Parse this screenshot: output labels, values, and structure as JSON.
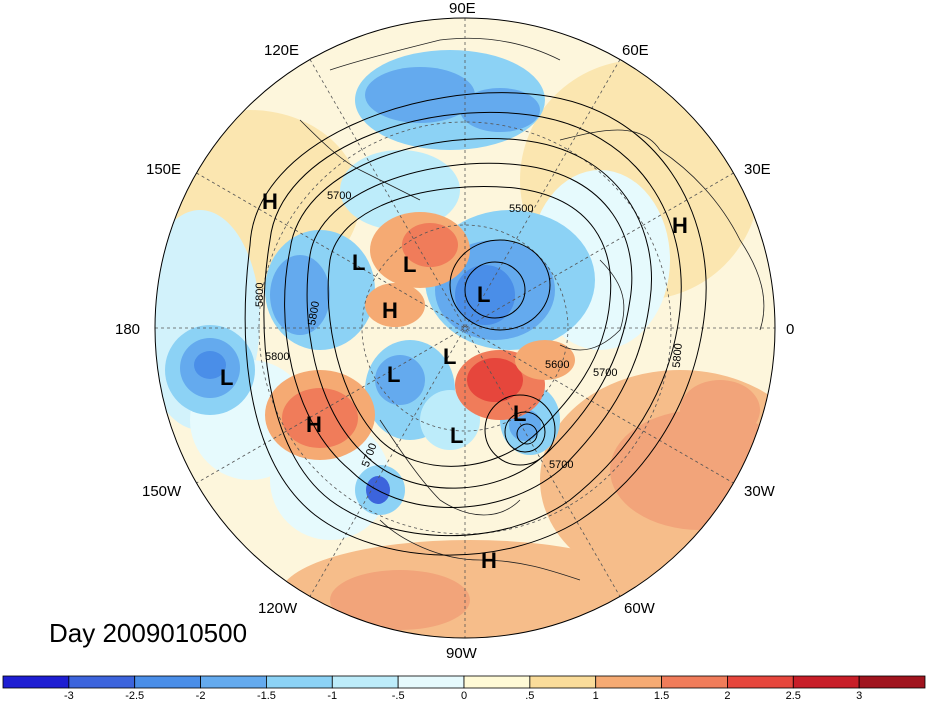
{
  "title": "Day 2009010500",
  "lon_labels": {
    "e90": "90E",
    "e60": "60E",
    "e120": "120E",
    "e30": "30E",
    "e150": "150E",
    "e0": "0",
    "w180": "180",
    "w150": "150W",
    "w30": "30W",
    "w120": "120W",
    "w60": "60W",
    "w90": "90W"
  },
  "pressure_centers": {
    "h1": "H",
    "h2": "H",
    "h3": "H",
    "h4": "H",
    "h5": "H",
    "l1": "L",
    "l2": "L",
    "l3": "L",
    "l4": "L",
    "l5": "L",
    "l6": "L",
    "l7": "L",
    "l8": "L"
  },
  "contour_labels": {
    "c1": "5700",
    "c2": "5500",
    "c3": "5800",
    "c4": "5800",
    "c5": "5800",
    "c6": "5600",
    "c7": "5700",
    "c8": "5800",
    "c9": "5700",
    "c10": "5700"
  },
  "colorbar": {
    "ticks": [
      "-3",
      "-2.5",
      "-2",
      "-1.5",
      "-1",
      "-.5",
      "0",
      ".5",
      "1",
      "1.5",
      "2",
      "2.5",
      "3"
    ],
    "colors": [
      "#1e1ed2",
      "#3c64dc",
      "#4a8ee8",
      "#64aaee",
      "#8cd2f5",
      "#bdecfa",
      "#e6fafd",
      "#fffad6",
      "#fadc9a",
      "#f5aa73",
      "#f07c5a",
      "#e6463c",
      "#c81e28",
      "#a0141e"
    ]
  },
  "colors": {
    "ocean_base": "#fdf6dc",
    "grid": "#555555",
    "contour": "#000000"
  }
}
